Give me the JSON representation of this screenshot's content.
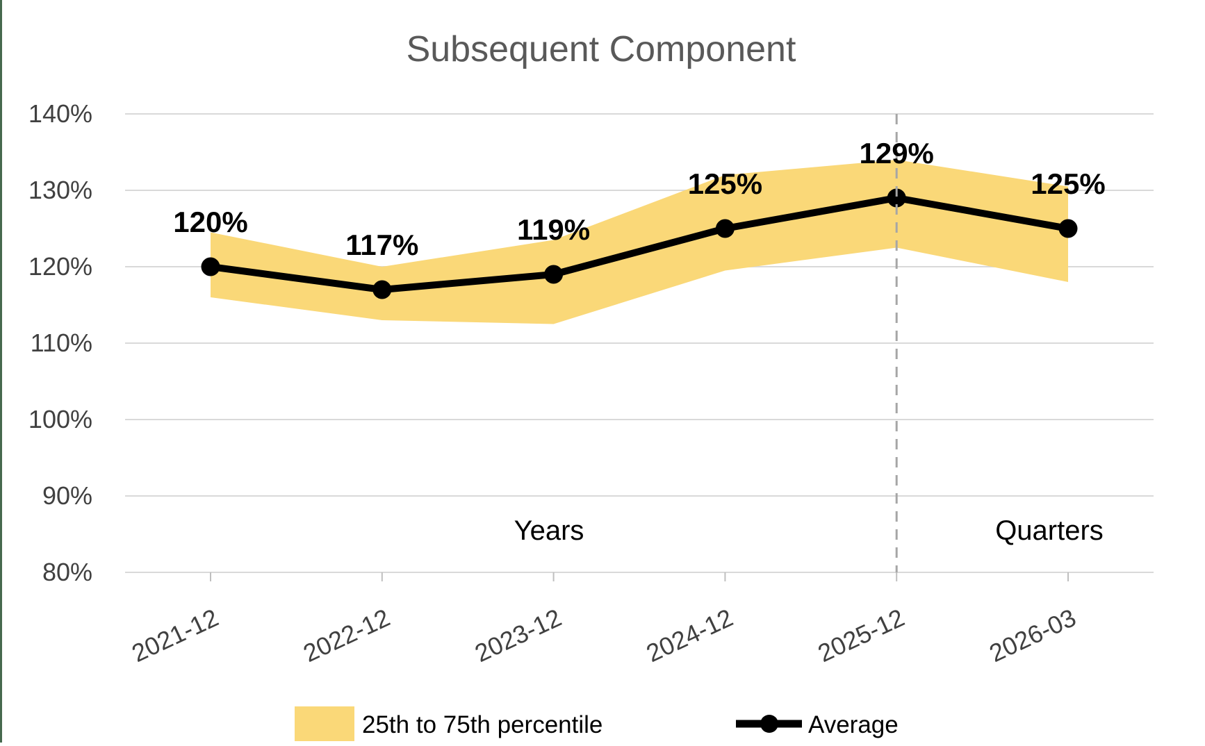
{
  "title": "Subsequent Component",
  "annotations": {
    "left_section": "Years",
    "right_section": "Quarters"
  },
  "legend": {
    "band_label": "25th to 75th percentile",
    "line_label": "Average"
  },
  "colors": {
    "band": "#FAD878",
    "average_line": "#000000",
    "gridline": "#D9D9D9",
    "tick": "#BFBFBF",
    "divider": "#A6A6A6",
    "title_text": "#595959",
    "axis_text": "#404040",
    "label_text": "#000000",
    "left_border": "#46694E"
  },
  "chart_data": {
    "type": "line",
    "title": "Subsequent Component",
    "categories": [
      "2021-12",
      "2022-12",
      "2023-12",
      "2024-12",
      "2025-12",
      "2026-03"
    ],
    "series": [
      {
        "name": "25th to 75th percentile",
        "type": "area-band",
        "lower": [
          116,
          113,
          112.5,
          119.5,
          122.5,
          118
        ],
        "upper": [
          124.5,
          120,
          123.5,
          132,
          134,
          130.5
        ]
      },
      {
        "name": "Average",
        "type": "line",
        "values": [
          120,
          117,
          119,
          125,
          129,
          125
        ]
      }
    ],
    "data_labels": [
      "120%",
      "117%",
      "119%",
      "125%",
      "129%",
      "125%"
    ],
    "y_tick_labels": [
      "140%",
      "130%",
      "120%",
      "110%",
      "100%",
      "90%",
      "80%"
    ],
    "y_tick_values": [
      140,
      130,
      120,
      110,
      100,
      90,
      80
    ],
    "ylim": [
      80,
      140
    ],
    "grid": true,
    "divider_at_category": "2025-12",
    "x_axis_sections": [
      "Years",
      "Quarters"
    ],
    "legend_position": "bottom"
  }
}
